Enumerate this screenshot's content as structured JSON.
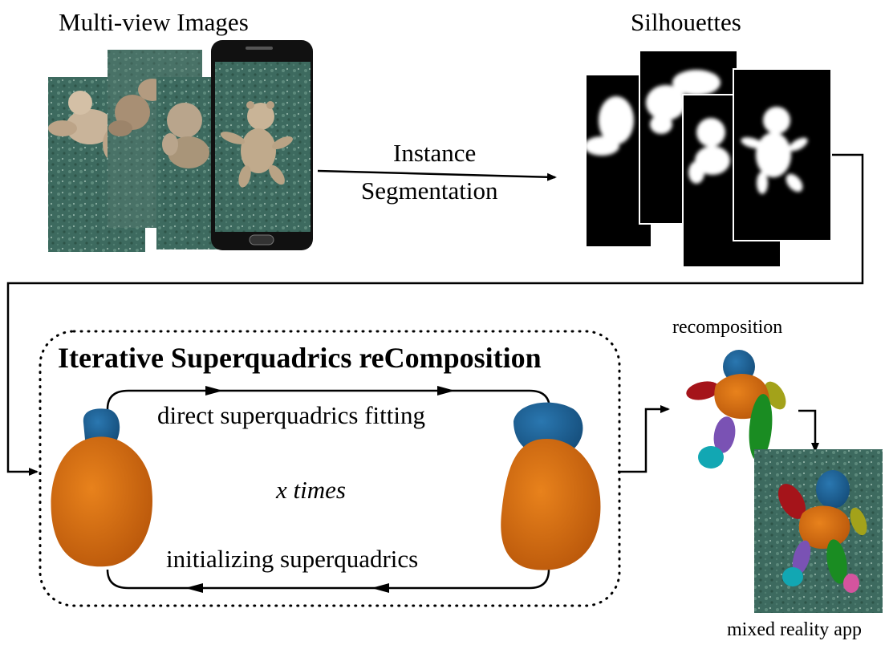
{
  "labels": {
    "multiview": "Multi-view Images",
    "silhouettes": "Silhouettes",
    "instance_line1": "Instance",
    "instance_line2": "Segmentation",
    "isc_title": "Iterative Superquadrics reComposition",
    "direct_fit": "direct superquadrics fitting",
    "x_times": "x times",
    "init_sq": "initializing superquadrics",
    "recomposition": "recomposition",
    "mixed_reality": "mixed reality app"
  },
  "colors": {
    "orange": "#d9660c",
    "blue": "#1b5f95",
    "teal_carpet": "#3f6e62",
    "red": "#a5141a",
    "olive": "#a3a21a",
    "green": "#1a8c22",
    "purple": "#7a52b4",
    "cyan": "#12a7b3",
    "pink": "#d4549e"
  }
}
